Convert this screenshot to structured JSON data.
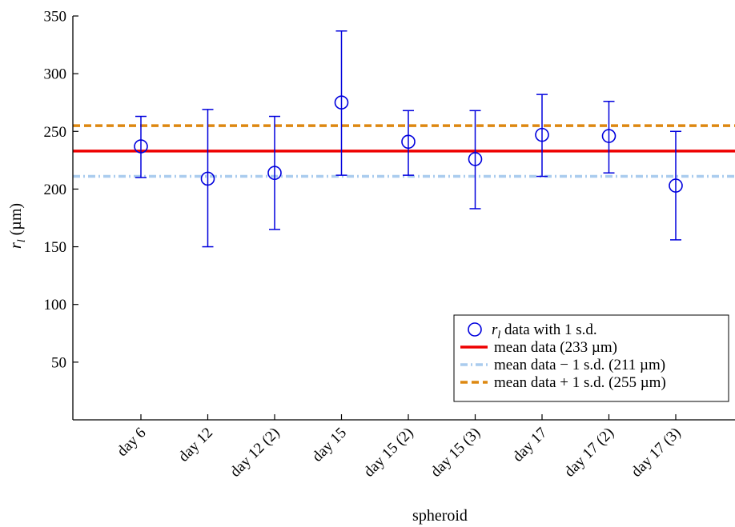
{
  "chart_data": {
    "type": "scatter",
    "xlabel": "spheroid",
    "ylabel": "r",
    "ylabel_sub": "l",
    "ylabel_unit": " (µm)",
    "categories": [
      "day 6",
      "day 12",
      "day 12 (2)",
      "day 15",
      "day 15 (2)",
      "day 15 (3)",
      "day 17",
      "day 17 (2)",
      "day 17 (3)"
    ],
    "ylim": [
      0,
      350
    ],
    "yticks": [
      50,
      100,
      150,
      200,
      250,
      300,
      350
    ],
    "grid": false,
    "legend_position": "bottom-right",
    "series": [
      {
        "name": "data with 1 s.d.",
        "name_prefix": "r",
        "name_sub": "l",
        "kind": "points_with_errorbars",
        "color": "#0000dd",
        "values": [
          237,
          209,
          214,
          275,
          241,
          226,
          247,
          246,
          203
        ],
        "err_low": [
          210,
          150,
          165,
          212,
          212,
          183,
          211,
          214,
          156
        ],
        "err_high": [
          263,
          269,
          263,
          337,
          268,
          268,
          282,
          276,
          250
        ]
      },
      {
        "name": "mean data (233 µm)",
        "kind": "hline",
        "value": 233,
        "color": "#ee0000",
        "dash": "solid"
      },
      {
        "name": "mean data − 1 s.d. (211 µm)",
        "kind": "hline",
        "value": 211,
        "color": "#aaccee",
        "dash": "dashdot"
      },
      {
        "name": "mean data + 1 s.d. (255 µm)",
        "kind": "hline",
        "value": 255,
        "color": "#dd8811",
        "dash": "dashed"
      }
    ]
  }
}
